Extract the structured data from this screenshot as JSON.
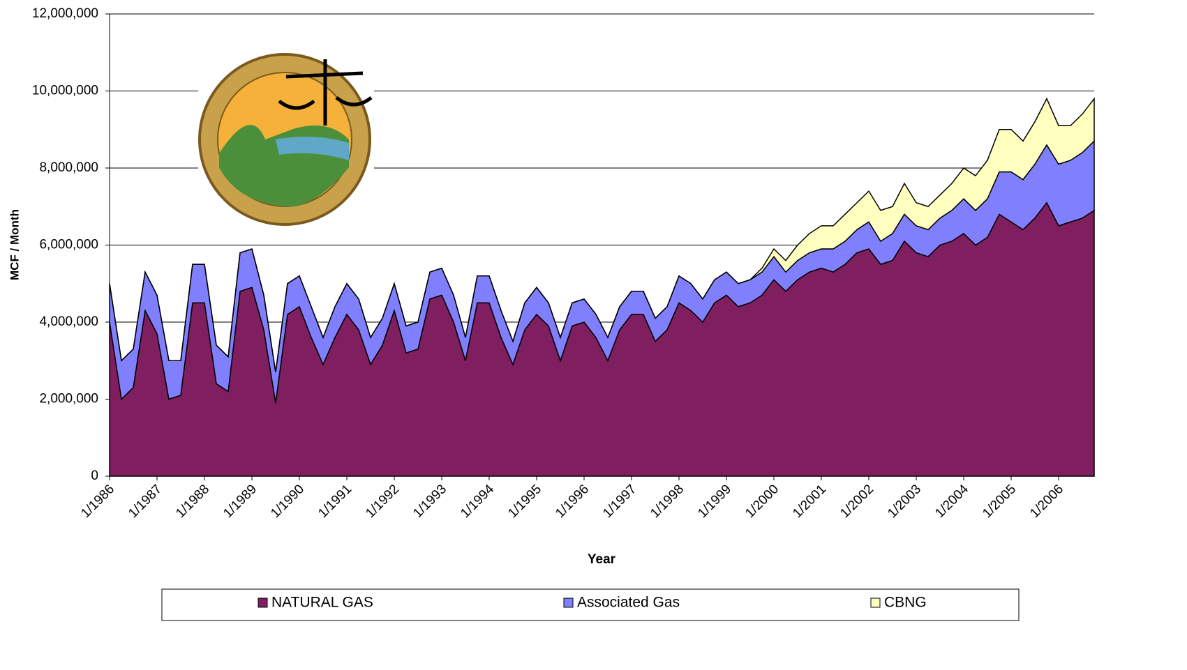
{
  "chart_data": {
    "type": "stacked-area",
    "y_label": "MCF / Month",
    "x_label": "Year",
    "categories": [
      "1/1986",
      null,
      null,
      null,
      "1/1987",
      null,
      null,
      null,
      "1/1988",
      null,
      null,
      null,
      "1/1989",
      null,
      null,
      null,
      "1/1990",
      null,
      null,
      null,
      "1/1991",
      null,
      null,
      null,
      "1/1992",
      null,
      null,
      null,
      "1/1993",
      null,
      null,
      null,
      "1/1994",
      null,
      null,
      null,
      "1/1995",
      null,
      null,
      null,
      "1/1996",
      null,
      null,
      null,
      "1/1997",
      null,
      null,
      null,
      "1/1998",
      null,
      null,
      null,
      "1/1999",
      null,
      null,
      null,
      "1/2000",
      null,
      null,
      null,
      "1/2001",
      null,
      null,
      null,
      "1/2002",
      null,
      null,
      null,
      "1/2003",
      null,
      null,
      null,
      "1/2004",
      null,
      null,
      null,
      "1/2005",
      null,
      null,
      null,
      "1/2006",
      null,
      null,
      null
    ],
    "series": [
      {
        "name": "NATURAL GAS",
        "color": "#7f1f5f",
        "values": [
          4000000,
          2000000,
          2300000,
          4300000,
          3700000,
          2000000,
          2100000,
          4500000,
          4500000,
          2400000,
          2200000,
          4800000,
          4900000,
          3800000,
          1900000,
          4200000,
          4400000,
          3600000,
          2900000,
          3600000,
          4200000,
          3800000,
          2900000,
          3400000,
          4300000,
          3200000,
          3300000,
          4600000,
          4700000,
          4000000,
          3000000,
          4500000,
          4500000,
          3600000,
          2900000,
          3800000,
          4200000,
          3900000,
          3000000,
          3900000,
          4000000,
          3600000,
          3000000,
          3800000,
          4200000,
          4200000,
          3500000,
          3800000,
          4500000,
          4300000,
          4000000,
          4500000,
          4700000,
          4400000,
          4500000,
          4700000,
          5100000,
          4800000,
          5100000,
          5300000,
          5400000,
          5300000,
          5500000,
          5800000,
          5900000,
          5500000,
          5600000,
          6100000,
          5800000,
          5700000,
          6000000,
          6100000,
          6300000,
          6000000,
          6200000,
          6800000,
          6600000,
          6400000,
          6700000,
          7100000,
          6500000,
          6600000,
          6700000,
          6900000
        ]
      },
      {
        "name": "Associated Gas",
        "color": "#8080ff",
        "values": [
          1000000,
          1000000,
          1000000,
          1000000,
          1000000,
          1000000,
          900000,
          1000000,
          1000000,
          1000000,
          900000,
          1000000,
          1000000,
          900000,
          800000,
          800000,
          800000,
          800000,
          700000,
          800000,
          800000,
          800000,
          700000,
          700000,
          700000,
          700000,
          700000,
          700000,
          700000,
          700000,
          600000,
          700000,
          700000,
          700000,
          600000,
          700000,
          700000,
          600000,
          600000,
          600000,
          600000,
          600000,
          600000,
          600000,
          600000,
          600000,
          600000,
          600000,
          700000,
          700000,
          600000,
          600000,
          600000,
          600000,
          600000,
          600000,
          600000,
          500000,
          500000,
          500000,
          500000,
          600000,
          600000,
          600000,
          700000,
          600000,
          700000,
          700000,
          700000,
          700000,
          700000,
          800000,
          900000,
          900000,
          1000000,
          1100000,
          1300000,
          1300000,
          1400000,
          1500000,
          1600000,
          1600000,
          1700000,
          1800000
        ]
      },
      {
        "name": "CBNG",
        "color": "#ffffc0",
        "values": [
          0,
          0,
          0,
          0,
          0,
          0,
          0,
          0,
          0,
          0,
          0,
          0,
          0,
          0,
          0,
          0,
          0,
          0,
          0,
          0,
          0,
          0,
          0,
          0,
          0,
          0,
          0,
          0,
          0,
          0,
          0,
          0,
          0,
          0,
          0,
          0,
          0,
          0,
          0,
          0,
          0,
          0,
          0,
          0,
          0,
          0,
          0,
          0,
          0,
          0,
          0,
          0,
          0,
          0,
          0,
          100000,
          200000,
          300000,
          400000,
          500000,
          600000,
          600000,
          700000,
          700000,
          800000,
          800000,
          700000,
          800000,
          600000,
          600000,
          600000,
          700000,
          800000,
          900000,
          1000000,
          1100000,
          1100000,
          1000000,
          1100000,
          1200000,
          1000000,
          900000,
          1000000,
          1100000
        ]
      }
    ],
    "ylim": [
      0,
      12000000
    ],
    "yticks": [
      0,
      {
        "value": 2000000,
        "label": "2,000,000"
      },
      {
        "value": 4000000,
        "label": "4,000,000"
      },
      {
        "value": 6000000,
        "label": "6,000,000"
      },
      {
        "value": 8000000,
        "label": "8,000,000"
      },
      {
        "value": 10000000,
        "label": "10,000,000"
      },
      {
        "value": 12000000,
        "label": "12,000,000"
      }
    ],
    "grid": true,
    "legend": "bottom"
  }
}
